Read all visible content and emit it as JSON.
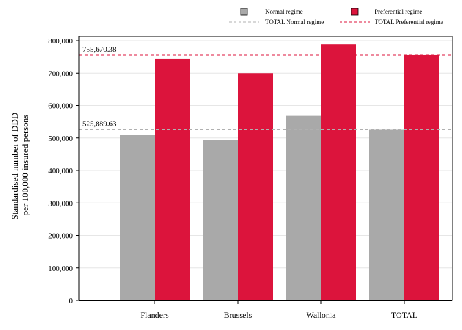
{
  "chart_data": {
    "type": "bar",
    "categories": [
      "Flanders",
      "Brussels",
      "Wallonia",
      "TOTAL"
    ],
    "series": [
      {
        "name": "Normal regime",
        "values": [
          509000,
          494000,
          568000,
          525889.63
        ],
        "color": "#a9a9a9"
      },
      {
        "name": "Preferential regime",
        "values": [
          743000,
          700000,
          789000,
          755670.38
        ],
        "color": "#dc143c"
      }
    ],
    "reference_lines": [
      {
        "name": "TOTAL Normal regime",
        "value": 525889.63,
        "label": "525,889.63",
        "color": "#b0b0b0",
        "style": "dashed"
      },
      {
        "name": "TOTAL Preferential regime",
        "value": 755670.38,
        "label": "755,670.38",
        "color": "#dc143c",
        "style": "dashed"
      }
    ],
    "ylabel_lines": [
      "Standardised number of DDD",
      "per 100,000 insured persons"
    ],
    "xlabel": "",
    "ylim": [
      0,
      800000
    ],
    "yticks": [
      0,
      100000,
      200000,
      300000,
      400000,
      500000,
      600000,
      700000,
      800000
    ],
    "ytick_labels": [
      "0",
      "100,000",
      "200,000",
      "300,000",
      "400,000",
      "500,000",
      "600,000",
      "700,000",
      "800,000"
    ],
    "grid": true,
    "legend_position": "top-right"
  }
}
